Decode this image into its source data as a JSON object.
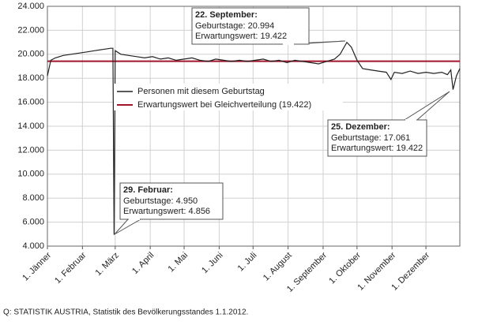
{
  "chart_data": {
    "type": "line",
    "x": [
      1,
      4,
      8,
      15,
      22,
      29,
      36,
      43,
      50,
      57,
      59,
      60,
      61,
      66,
      73,
      80,
      87,
      94,
      101,
      108,
      115,
      122,
      129,
      136,
      143,
      150,
      157,
      164,
      171,
      178,
      185,
      192,
      199,
      206,
      213,
      220,
      227,
      234,
      241,
      248,
      255,
      260,
      266,
      270,
      275,
      280,
      287,
      294,
      301,
      305,
      308,
      315,
      322,
      329,
      336,
      343,
      350,
      355,
      358,
      360,
      363,
      366
    ],
    "series": [
      {
        "name": "Personen mit diesem Geburtstag",
        "color": "#222222",
        "values": [
          18200,
          19500,
          19700,
          19900,
          20000,
          20100,
          20200,
          20300,
          20400,
          20500,
          20500,
          4950,
          20300,
          20000,
          19900,
          19800,
          19700,
          19800,
          19600,
          19700,
          19500,
          19600,
          19700,
          19500,
          19400,
          19600,
          19500,
          19400,
          19500,
          19400,
          19500,
          19600,
          19400,
          19500,
          19300,
          19500,
          19400,
          19300,
          19200,
          19400,
          19600,
          20000,
          20994,
          20600,
          19500,
          18800,
          18700,
          18600,
          18500,
          17900,
          18500,
          18400,
          18600,
          18400,
          18500,
          18400,
          18500,
          18300,
          18700,
          17061,
          18200,
          18800
        ]
      }
    ],
    "reference_line": {
      "name": "Erwartungswert bei Gleichverteilung (19.422)",
      "value": 19422,
      "color": "#a3142a"
    },
    "xlim": [
      1,
      366
    ],
    "xticks": [
      {
        "value": 1,
        "label": "1. Jänner"
      },
      {
        "value": 32,
        "label": "1. Februar"
      },
      {
        "value": 61,
        "label": "1. März"
      },
      {
        "value": 92,
        "label": "1. April"
      },
      {
        "value": 122,
        "label": "1. Mai"
      },
      {
        "value": 153,
        "label": "1. Juni"
      },
      {
        "value": 183,
        "label": "1. Juli"
      },
      {
        "value": 214,
        "label": "1. August"
      },
      {
        "value": 245,
        "label": "1. September"
      },
      {
        "value": 275,
        "label": "1. Oktober"
      },
      {
        "value": 306,
        "label": "1. November"
      },
      {
        "value": 336,
        "label": "1. Dezember"
      }
    ],
    "ylim": [
      4000,
      24000
    ],
    "yticks": [
      {
        "value": 4000,
        "label": "4.000"
      },
      {
        "value": 6000,
        "label": "6.000"
      },
      {
        "value": 8000,
        "label": "8.000"
      },
      {
        "value": 10000,
        "label": "10.000"
      },
      {
        "value": 12000,
        "label": "12.000"
      },
      {
        "value": 14000,
        "label": "14.000"
      },
      {
        "value": 16000,
        "label": "16.000"
      },
      {
        "value": 18000,
        "label": "18.000"
      },
      {
        "value": 20000,
        "label": "20.000"
      },
      {
        "value": 22000,
        "label": "22.000"
      },
      {
        "value": 24000,
        "label": "24.000"
      }
    ],
    "grid": true,
    "annotations": [
      {
        "title": "22. September:",
        "lines": [
          "Geburtstage: 20.994",
          "Erwartungswert: 19.422"
        ]
      },
      {
        "title": "25. Dezember:",
        "lines": [
          "Geburtstage: 17.061",
          "Erwartungswert: 19.422"
        ]
      },
      {
        "title": "29. Februar:",
        "lines": [
          "Geburtstage: 4.950",
          "Erwartungswert: 4.856"
        ]
      }
    ],
    "source": "Q: STATISTIK AUSTRIA, Statistik des Bevölkerungsstandes 1.1.2012."
  }
}
